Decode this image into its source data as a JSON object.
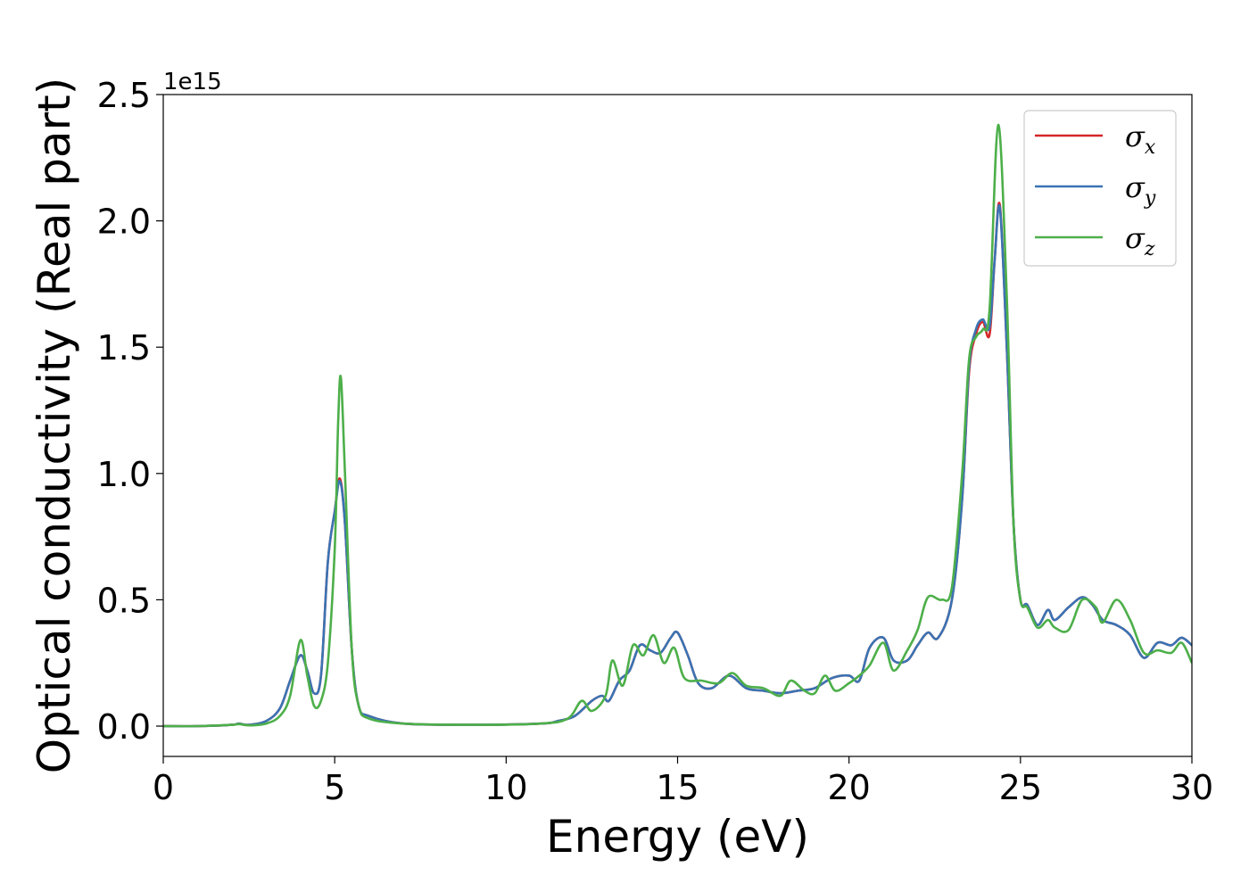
{
  "chart_data": {
    "type": "line",
    "xlabel": "Energy (eV)",
    "ylabel": "Optical conductivity (Real part)",
    "y_offset_label": "1e15",
    "xlim": [
      0,
      30
    ],
    "ylim": [
      -0.12,
      2.5
    ],
    "x_ticks": [
      0,
      5,
      10,
      15,
      20,
      25,
      30
    ],
    "y_ticks": [
      0.0,
      0.5,
      1.0,
      1.5,
      2.0,
      2.5
    ],
    "x_tick_labels": [
      "0",
      "5",
      "10",
      "15",
      "20",
      "25",
      "30"
    ],
    "y_tick_labels": [
      "0.0",
      "0.5",
      "1.0",
      "1.5",
      "2.0",
      "2.5"
    ],
    "grid": false,
    "legend_position": "top-right",
    "series": [
      {
        "name": "σ",
        "subscript": "x",
        "color": "#d62728",
        "points": [
          [
            0,
            0
          ],
          [
            1,
            0.0
          ],
          [
            2,
            0.005
          ],
          [
            2.2,
            0.01
          ],
          [
            2.5,
            0.005
          ],
          [
            3,
            0.02
          ],
          [
            3.4,
            0.07
          ],
          [
            3.7,
            0.18
          ],
          [
            4,
            0.28
          ],
          [
            4.2,
            0.22
          ],
          [
            4.4,
            0.13
          ],
          [
            4.6,
            0.2
          ],
          [
            4.8,
            0.65
          ],
          [
            5,
            0.85
          ],
          [
            5.15,
            0.98
          ],
          [
            5.3,
            0.8
          ],
          [
            5.5,
            0.3
          ],
          [
            5.7,
            0.08
          ],
          [
            6,
            0.04
          ],
          [
            7,
            0.01
          ],
          [
            9,
            0.005
          ],
          [
            11,
            0.01
          ],
          [
            11.5,
            0.02
          ],
          [
            12,
            0.04
          ],
          [
            12.5,
            0.1
          ],
          [
            12.8,
            0.12
          ],
          [
            13,
            0.1
          ],
          [
            13.3,
            0.18
          ],
          [
            13.6,
            0.22
          ],
          [
            13.9,
            0.32
          ],
          [
            14.2,
            0.3
          ],
          [
            14.5,
            0.29
          ],
          [
            14.8,
            0.35
          ],
          [
            15,
            0.37
          ],
          [
            15.3,
            0.28
          ],
          [
            15.6,
            0.17
          ],
          [
            16,
            0.15
          ],
          [
            16.5,
            0.2
          ],
          [
            17,
            0.15
          ],
          [
            17.5,
            0.14
          ],
          [
            18,
            0.13
          ],
          [
            18.5,
            0.14
          ],
          [
            19,
            0.15
          ],
          [
            19.5,
            0.19
          ],
          [
            20,
            0.2
          ],
          [
            20.3,
            0.18
          ],
          [
            20.6,
            0.31
          ],
          [
            21,
            0.35
          ],
          [
            21.3,
            0.26
          ],
          [
            21.7,
            0.26
          ],
          [
            22,
            0.32
          ],
          [
            22.3,
            0.37
          ],
          [
            22.6,
            0.35
          ],
          [
            23,
            0.5
          ],
          [
            23.3,
            0.9
          ],
          [
            23.5,
            1.4
          ],
          [
            23.7,
            1.55
          ],
          [
            23.9,
            1.6
          ],
          [
            24.1,
            1.55
          ],
          [
            24.25,
            1.85
          ],
          [
            24.4,
            2.06
          ],
          [
            24.6,
            1.5
          ],
          [
            24.8,
            0.8
          ],
          [
            25,
            0.5
          ],
          [
            25.2,
            0.48
          ],
          [
            25.5,
            0.4
          ],
          [
            25.8,
            0.46
          ],
          [
            26,
            0.42
          ],
          [
            26.4,
            0.47
          ],
          [
            26.8,
            0.51
          ],
          [
            27.1,
            0.48
          ],
          [
            27.4,
            0.42
          ],
          [
            27.8,
            0.4
          ],
          [
            28.2,
            0.36
          ],
          [
            28.6,
            0.27
          ],
          [
            29,
            0.33
          ],
          [
            29.4,
            0.32
          ],
          [
            29.7,
            0.35
          ],
          [
            30,
            0.32
          ]
        ]
      },
      {
        "name": "σ",
        "subscript": "y",
        "color": "#3a73b3",
        "points": [
          [
            0,
            0
          ],
          [
            1,
            0.0
          ],
          [
            2,
            0.005
          ],
          [
            2.2,
            0.01
          ],
          [
            2.5,
            0.005
          ],
          [
            3,
            0.02
          ],
          [
            3.4,
            0.07
          ],
          [
            3.7,
            0.18
          ],
          [
            4,
            0.28
          ],
          [
            4.2,
            0.22
          ],
          [
            4.4,
            0.13
          ],
          [
            4.6,
            0.2
          ],
          [
            4.8,
            0.65
          ],
          [
            5,
            0.85
          ],
          [
            5.15,
            0.97
          ],
          [
            5.3,
            0.8
          ],
          [
            5.5,
            0.3
          ],
          [
            5.7,
            0.08
          ],
          [
            6,
            0.04
          ],
          [
            7,
            0.01
          ],
          [
            9,
            0.005
          ],
          [
            11,
            0.01
          ],
          [
            11.5,
            0.02
          ],
          [
            12,
            0.04
          ],
          [
            12.5,
            0.1
          ],
          [
            12.8,
            0.12
          ],
          [
            13,
            0.1
          ],
          [
            13.3,
            0.18
          ],
          [
            13.6,
            0.22
          ],
          [
            13.9,
            0.32
          ],
          [
            14.2,
            0.3
          ],
          [
            14.5,
            0.29
          ],
          [
            14.8,
            0.35
          ],
          [
            15,
            0.37
          ],
          [
            15.3,
            0.28
          ],
          [
            15.6,
            0.17
          ],
          [
            16,
            0.15
          ],
          [
            16.5,
            0.2
          ],
          [
            17,
            0.15
          ],
          [
            17.5,
            0.14
          ],
          [
            18,
            0.13
          ],
          [
            18.5,
            0.14
          ],
          [
            19,
            0.15
          ],
          [
            19.5,
            0.19
          ],
          [
            20,
            0.2
          ],
          [
            20.3,
            0.18
          ],
          [
            20.6,
            0.31
          ],
          [
            21,
            0.35
          ],
          [
            21.3,
            0.26
          ],
          [
            21.7,
            0.26
          ],
          [
            22,
            0.32
          ],
          [
            22.3,
            0.37
          ],
          [
            22.6,
            0.35
          ],
          [
            23,
            0.5
          ],
          [
            23.3,
            0.9
          ],
          [
            23.5,
            1.42
          ],
          [
            23.7,
            1.57
          ],
          [
            23.9,
            1.61
          ],
          [
            24.1,
            1.58
          ],
          [
            24.25,
            1.85
          ],
          [
            24.4,
            2.05
          ],
          [
            24.6,
            1.5
          ],
          [
            24.8,
            0.8
          ],
          [
            25,
            0.5
          ],
          [
            25.2,
            0.48
          ],
          [
            25.5,
            0.4
          ],
          [
            25.8,
            0.46
          ],
          [
            26,
            0.42
          ],
          [
            26.4,
            0.47
          ],
          [
            26.8,
            0.51
          ],
          [
            27.1,
            0.48
          ],
          [
            27.4,
            0.42
          ],
          [
            27.8,
            0.4
          ],
          [
            28.2,
            0.36
          ],
          [
            28.6,
            0.27
          ],
          [
            29,
            0.33
          ],
          [
            29.4,
            0.32
          ],
          [
            29.7,
            0.35
          ],
          [
            30,
            0.32
          ]
        ]
      },
      {
        "name": "σ",
        "subscript": "z",
        "color": "#4daf4a",
        "points": [
          [
            0,
            0
          ],
          [
            1,
            0.0
          ],
          [
            2,
            0.005
          ],
          [
            2.2,
            0.008
          ],
          [
            2.5,
            0.003
          ],
          [
            3,
            0.01
          ],
          [
            3.4,
            0.04
          ],
          [
            3.7,
            0.12
          ],
          [
            4,
            0.34
          ],
          [
            4.2,
            0.2
          ],
          [
            4.4,
            0.08
          ],
          [
            4.6,
            0.1
          ],
          [
            4.8,
            0.25
          ],
          [
            5,
            0.7
          ],
          [
            5.1,
            1.2
          ],
          [
            5.18,
            1.38
          ],
          [
            5.3,
            1.0
          ],
          [
            5.5,
            0.3
          ],
          [
            5.7,
            0.08
          ],
          [
            6,
            0.03
          ],
          [
            7,
            0.01
          ],
          [
            9,
            0.005
          ],
          [
            11,
            0.01
          ],
          [
            11.8,
            0.03
          ],
          [
            12.2,
            0.1
          ],
          [
            12.5,
            0.06
          ],
          [
            12.9,
            0.12
          ],
          [
            13.1,
            0.26
          ],
          [
            13.4,
            0.16
          ],
          [
            13.7,
            0.32
          ],
          [
            14,
            0.28
          ],
          [
            14.3,
            0.36
          ],
          [
            14.6,
            0.25
          ],
          [
            14.9,
            0.31
          ],
          [
            15.2,
            0.19
          ],
          [
            15.7,
            0.18
          ],
          [
            16.2,
            0.17
          ],
          [
            16.6,
            0.21
          ],
          [
            17,
            0.16
          ],
          [
            17.5,
            0.15
          ],
          [
            18,
            0.12
          ],
          [
            18.3,
            0.18
          ],
          [
            18.7,
            0.14
          ],
          [
            19,
            0.13
          ],
          [
            19.3,
            0.2
          ],
          [
            19.6,
            0.14
          ],
          [
            20,
            0.17
          ],
          [
            20.3,
            0.2
          ],
          [
            20.6,
            0.24
          ],
          [
            21,
            0.33
          ],
          [
            21.3,
            0.22
          ],
          [
            21.7,
            0.3
          ],
          [
            22,
            0.38
          ],
          [
            22.3,
            0.51
          ],
          [
            22.7,
            0.5
          ],
          [
            23,
            0.55
          ],
          [
            23.3,
            1.0
          ],
          [
            23.5,
            1.45
          ],
          [
            23.7,
            1.54
          ],
          [
            23.9,
            1.57
          ],
          [
            24.1,
            1.65
          ],
          [
            24.35,
            2.38
          ],
          [
            24.6,
            1.7
          ],
          [
            24.8,
            0.8
          ],
          [
            25,
            0.5
          ],
          [
            25.2,
            0.47
          ],
          [
            25.5,
            0.39
          ],
          [
            25.8,
            0.42
          ],
          [
            26,
            0.39
          ],
          [
            26.4,
            0.38
          ],
          [
            26.8,
            0.5
          ],
          [
            27.2,
            0.47
          ],
          [
            27.4,
            0.41
          ],
          [
            27.8,
            0.5
          ],
          [
            28.2,
            0.42
          ],
          [
            28.6,
            0.29
          ],
          [
            29,
            0.3
          ],
          [
            29.4,
            0.29
          ],
          [
            29.7,
            0.33
          ],
          [
            30,
            0.25
          ]
        ]
      }
    ]
  }
}
